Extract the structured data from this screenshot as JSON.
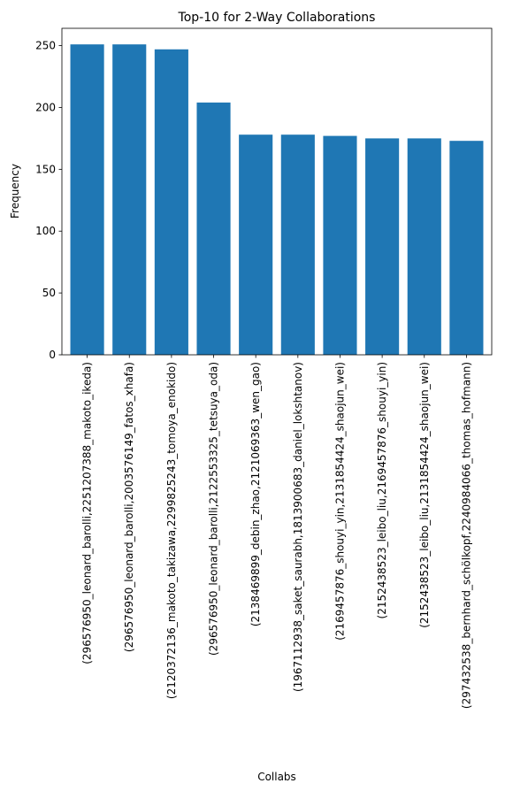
{
  "chart_data": {
    "type": "bar",
    "title": "Top-10 for 2-Way Collaborations",
    "xlabel": "Collabs",
    "ylabel": "Frequency",
    "ylim": [
      0,
      264
    ],
    "yticks": [
      0,
      50,
      100,
      150,
      200,
      250
    ],
    "grid": false,
    "bar_color": "#1f77b4",
    "categories": [
      "(296576950_leonard_barolli,2251207388_makoto_ikeda)",
      "(296576950_leonard_barolli,2003576149_fatos_xhafa)",
      "(2120372136_makoto_takizawa,2299825243_tomoya_enokido)",
      "(296576950_leonard_barolli,2122553325_tetsuya_oda)",
      "(2138469899_debin_zhao,2121069363_wen_gao)",
      "(1967112938_saket_saurabh,1813900683_daniel_lokshtanov)",
      "(2169457876_shouyi_yin,2131854424_shaojun_wei)",
      "(2152438523_leibo_liu,2169457876_shouyi_yin)",
      "(2152438523_leibo_liu,2131854424_shaojun_wei)",
      "(297432538_bernhard_schölkopf,2240984066_thomas_hofmann)"
    ],
    "values": [
      251,
      251,
      247,
      204,
      178,
      178,
      177,
      175,
      175,
      173
    ]
  }
}
